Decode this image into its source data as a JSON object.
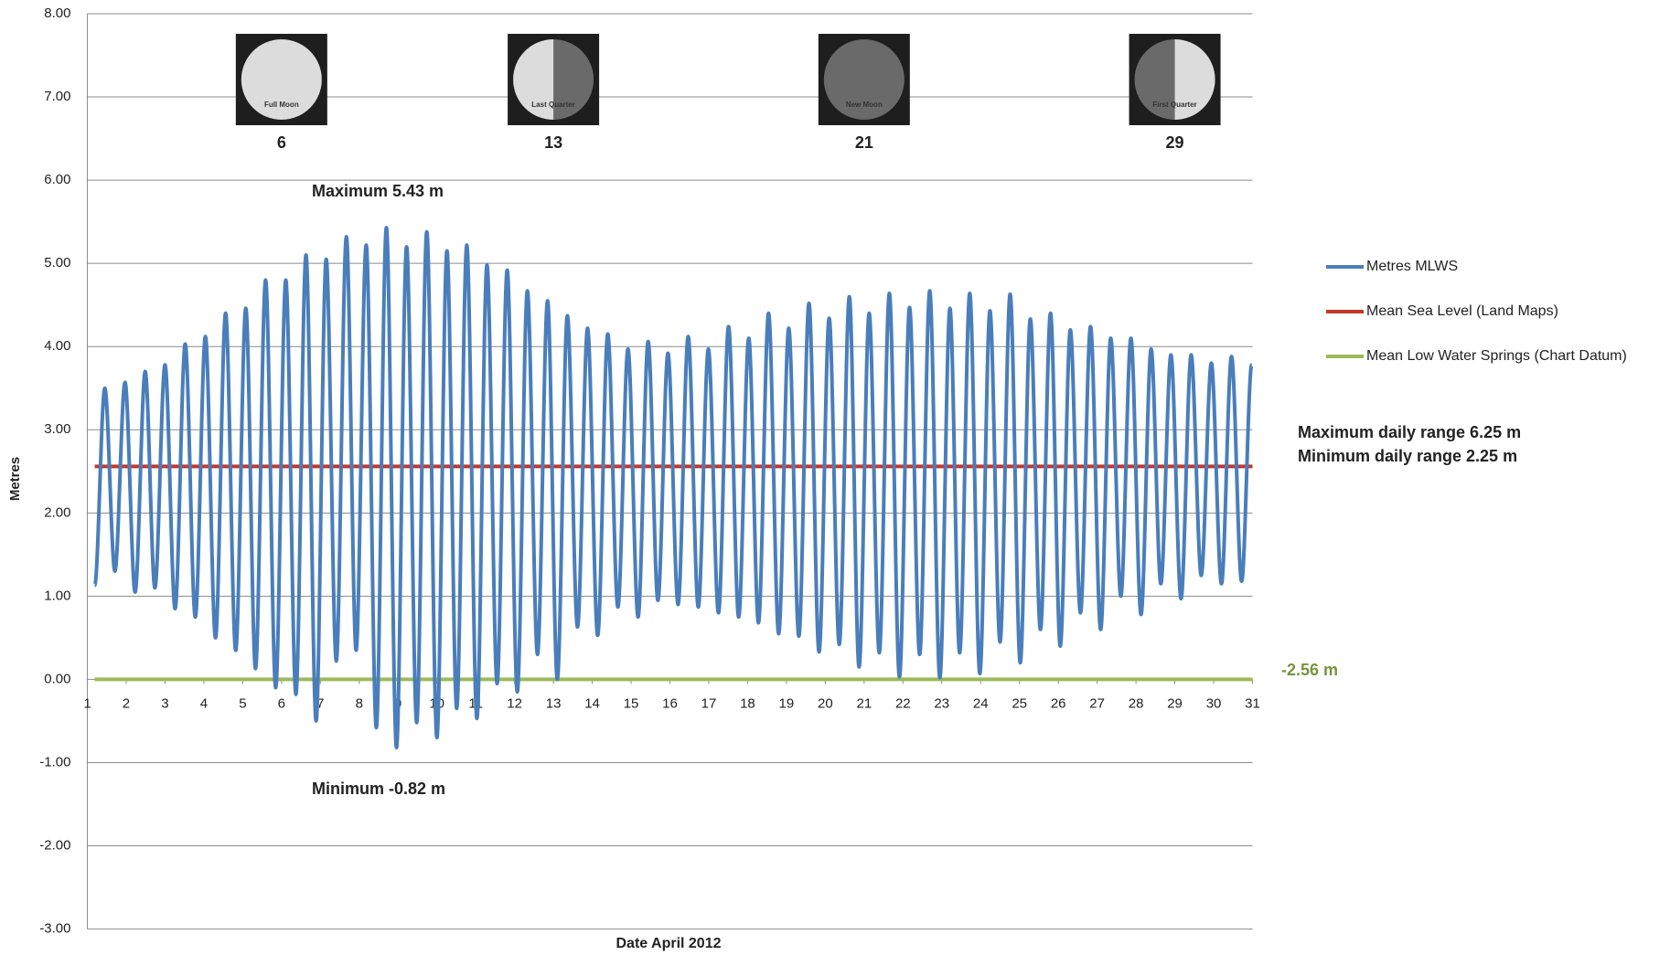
{
  "chart_data": {
    "type": "line",
    "x_label": "Date April 2012",
    "y_label": "Metres",
    "xlim": [
      1,
      31
    ],
    "ylim": [
      -3,
      8
    ],
    "xticks": [
      1,
      2,
      3,
      4,
      5,
      6,
      7,
      8,
      9,
      10,
      11,
      12,
      13,
      14,
      15,
      16,
      17,
      18,
      19,
      20,
      21,
      22,
      23,
      24,
      25,
      26,
      27,
      28,
      29,
      30,
      31
    ],
    "yticks": [
      {
        "value": -3,
        "label": "-3.00"
      },
      {
        "value": -2,
        "label": "-2.00"
      },
      {
        "value": -1,
        "label": "-1.00"
      },
      {
        "value": 0,
        "label": "0.00"
      },
      {
        "value": 1,
        "label": "1.00"
      },
      {
        "value": 2,
        "label": "2.00"
      },
      {
        "value": 3,
        "label": "3.00"
      },
      {
        "value": 4,
        "label": "4.00"
      },
      {
        "value": 5,
        "label": "5.00"
      },
      {
        "value": 6,
        "label": "6.00"
      },
      {
        "value": 7,
        "label": "7.00"
      },
      {
        "value": 8,
        "label": "8.00"
      }
    ],
    "grid": true,
    "legend": "right",
    "series": [
      {
        "name": "Metres MLWS",
        "color": "#4a7ebb",
        "x": [
          1.19,
          1.45,
          1.71,
          1.97,
          2.23,
          2.49,
          2.74,
          3.0,
          3.26,
          3.52,
          3.78,
          4.04,
          4.3,
          4.56,
          4.82,
          5.08,
          5.33,
          5.59,
          5.85,
          6.11,
          6.37,
          6.63,
          6.89,
          7.15,
          7.41,
          7.67,
          7.92,
          8.18,
          8.44,
          8.7,
          8.96,
          9.22,
          9.48,
          9.74,
          10.0,
          10.26,
          10.51,
          10.77,
          11.03,
          11.29,
          11.55,
          11.81,
          12.07,
          12.33,
          12.59,
          12.85,
          13.1,
          13.36,
          13.62,
          13.88,
          14.14,
          14.4,
          14.66,
          14.92,
          15.18,
          15.44,
          15.69,
          15.95,
          16.21,
          16.47,
          16.73,
          16.99,
          17.25,
          17.51,
          17.77,
          18.03,
          18.28,
          18.54,
          18.8,
          19.06,
          19.32,
          19.58,
          19.84,
          20.1,
          20.36,
          20.62,
          20.87,
          21.13,
          21.39,
          21.65,
          21.91,
          22.17,
          22.43,
          22.69,
          22.95,
          23.21,
          23.46,
          23.72,
          23.98,
          24.24,
          24.5,
          24.76,
          25.02,
          25.28,
          25.54,
          25.8,
          26.05,
          26.31,
          26.57,
          26.83,
          27.09,
          27.35,
          27.61,
          27.87,
          28.13,
          28.39,
          28.64,
          28.9,
          29.16,
          29.42,
          29.68,
          29.94,
          30.2,
          30.46,
          30.72,
          30.98
        ],
        "values": [
          1.13,
          3.5,
          1.3,
          3.57,
          1.05,
          3.7,
          1.1,
          3.78,
          0.85,
          4.03,
          0.75,
          4.12,
          0.5,
          4.4,
          0.35,
          4.46,
          0.13,
          4.8,
          -0.1,
          4.8,
          -0.18,
          5.1,
          -0.5,
          5.05,
          0.22,
          5.32,
          0.35,
          5.22,
          -0.58,
          5.43,
          -0.82,
          5.2,
          -0.52,
          5.38,
          -0.7,
          5.15,
          -0.35,
          5.22,
          -0.47,
          4.98,
          -0.05,
          4.92,
          -0.15,
          4.67,
          0.3,
          4.55,
          0.0,
          4.37,
          0.63,
          4.22,
          0.53,
          4.15,
          0.87,
          3.97,
          0.75,
          4.06,
          0.95,
          3.92,
          0.9,
          4.12,
          0.87,
          3.97,
          0.8,
          4.24,
          0.75,
          4.1,
          0.68,
          4.4,
          0.55,
          4.22,
          0.52,
          4.52,
          0.33,
          4.34,
          0.42,
          4.6,
          0.15,
          4.4,
          0.32,
          4.64,
          0.03,
          4.47,
          0.3,
          4.67,
          0.02,
          4.46,
          0.32,
          4.64,
          0.07,
          4.43,
          0.45,
          4.63,
          0.2,
          4.33,
          0.6,
          4.4,
          0.4,
          4.2,
          0.8,
          4.24,
          0.6,
          4.1,
          1.0,
          4.1,
          0.78,
          3.97,
          1.15,
          3.9,
          0.97,
          3.9,
          1.25,
          3.8,
          1.15,
          3.88,
          1.18,
          3.78
        ]
      },
      {
        "name": "Mean Sea Level (Land Maps)",
        "color": "#c0392b",
        "x": [
          1.19,
          31
        ],
        "values": [
          2.56,
          2.56
        ]
      },
      {
        "name": "Mean Low Water Springs (Chart Datum)",
        "color": "#9bbb59",
        "x": [
          1.19,
          31
        ],
        "values": [
          0,
          0
        ]
      }
    ],
    "annotations": {
      "maximum": "Maximum 5.43 m",
      "minimum": "Minimum -0.82 m",
      "max_daily_range": "Maximum daily range 6.25 m",
      "min_daily_range": "Minimum daily range 2.25 m",
      "chart_datum": "-2.56 m"
    },
    "moon_phases": [
      {
        "day": 6,
        "label": "Full Moon"
      },
      {
        "day": 13,
        "label": "Last Quarter"
      },
      {
        "day": 21,
        "label": "New Moon"
      },
      {
        "day": 29,
        "label": "First Quarter"
      }
    ]
  }
}
